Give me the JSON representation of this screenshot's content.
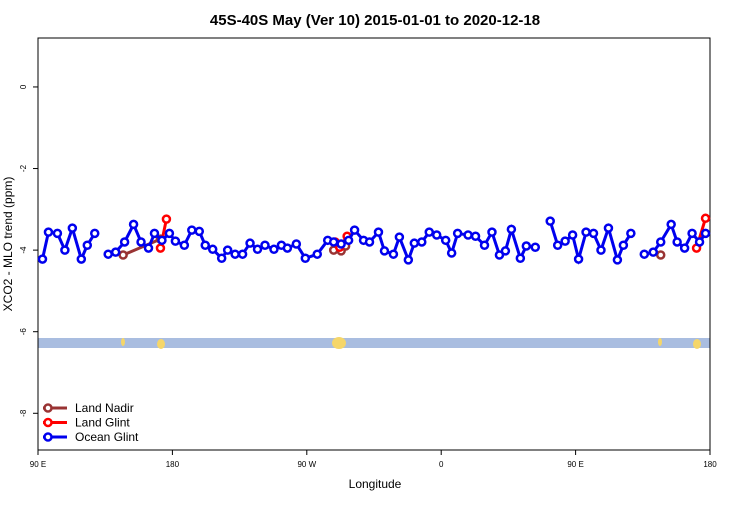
{
  "chart_data": {
    "type": "line",
    "title": "45S-40S May (Ver 10)   2015-01-01 to 2020-12-18",
    "xlabel": "Longitude",
    "ylabel": "XCO2 - MLO trend (ppm)",
    "xlim": [
      90,
      540
    ],
    "xticks": [
      {
        "value": 90,
        "label": "90 E"
      },
      180,
      {
        "value": 270,
        "label": "90 W"
      },
      {
        "value": 360,
        "label": "0"
      },
      {
        "value": 450,
        "label": "90 E"
      },
      {
        "value": 540,
        "label": "180"
      }
    ],
    "ylim": [
      -8.9,
      1.2
    ],
    "yticks": [
      0,
      -2,
      -4,
      -6,
      -8
    ],
    "legend": "bottom-left",
    "series": [
      {
        "name": "Land Nadir",
        "color": "#993333",
        "x": [
          147,
          172,
          230,
          288,
          293,
          296,
          400,
          507
        ],
        "values": [
          -4.12,
          -3.73,
          null,
          -4.0,
          -4.02,
          -3.9,
          null,
          -4.12
        ]
      },
      {
        "name": "Land Glint",
        "color": "#ff0000",
        "x": [
          172,
          176,
          250,
          289,
          292,
          297,
          400,
          531,
          537
        ],
        "values": [
          -3.95,
          -3.24,
          null,
          -3.8,
          -3.93,
          -3.66,
          null,
          -3.95,
          -3.22
        ]
      },
      {
        "name": "Ocean Glint",
        "color": "#0000ee",
        "x": [
          93,
          97,
          103,
          108,
          113,
          119,
          123,
          128,
          133,
          137,
          142,
          148,
          154,
          159,
          164,
          168,
          173,
          178,
          182,
          188,
          193,
          198,
          202,
          207,
          213,
          217,
          222,
          227,
          232,
          237,
          242,
          248,
          253,
          257,
          263,
          269,
          277,
          284,
          288,
          293,
          298,
          302,
          308,
          312,
          318,
          322,
          328,
          332,
          338,
          342,
          347,
          352,
          357,
          363,
          367,
          371,
          378,
          383,
          389,
          394,
          399,
          403,
          407,
          413,
          417,
          423,
          428,
          433,
          438,
          443,
          448,
          452,
          457,
          462,
          467,
          472,
          478,
          482,
          487,
          492,
          496,
          502,
          507,
          514,
          518,
          523,
          528,
          533,
          537
        ],
        "values": [
          -4.22,
          -3.56,
          -3.59,
          -4.0,
          -3.46,
          -4.22,
          -3.88,
          -3.59,
          null,
          -4.1,
          -4.05,
          -3.8,
          -3.37,
          -3.8,
          -3.95,
          -3.59,
          -3.76,
          -3.59,
          -3.78,
          -3.88,
          -3.51,
          -3.54,
          -3.88,
          -3.98,
          -4.2,
          -4.0,
          -4.1,
          -4.1,
          -3.83,
          -3.98,
          -3.88,
          -3.98,
          -3.88,
          -3.95,
          -3.85,
          -4.2,
          -4.1,
          -3.76,
          -3.8,
          -3.85,
          -3.76,
          -3.51,
          -3.76,
          -3.8,
          -3.56,
          -4.02,
          -4.1,
          -3.68,
          -4.24,
          -3.83,
          -3.8,
          -3.56,
          -3.63,
          -3.76,
          -4.07,
          -3.59,
          -3.63,
          -3.66,
          -3.88,
          -3.56,
          -4.12,
          -4.02,
          -3.49,
          -4.2,
          -3.9,
          -3.93,
          null,
          -3.29,
          -3.88,
          -3.78,
          -3.63,
          -4.22,
          -3.56,
          -3.59,
          -4.0,
          -3.46,
          -4.24,
          -3.88,
          -3.59,
          null,
          -4.1,
          -4.05,
          -3.8,
          -3.37,
          -3.8,
          -3.95,
          -3.59,
          -3.8,
          -3.59
        ]
      }
    ]
  }
}
